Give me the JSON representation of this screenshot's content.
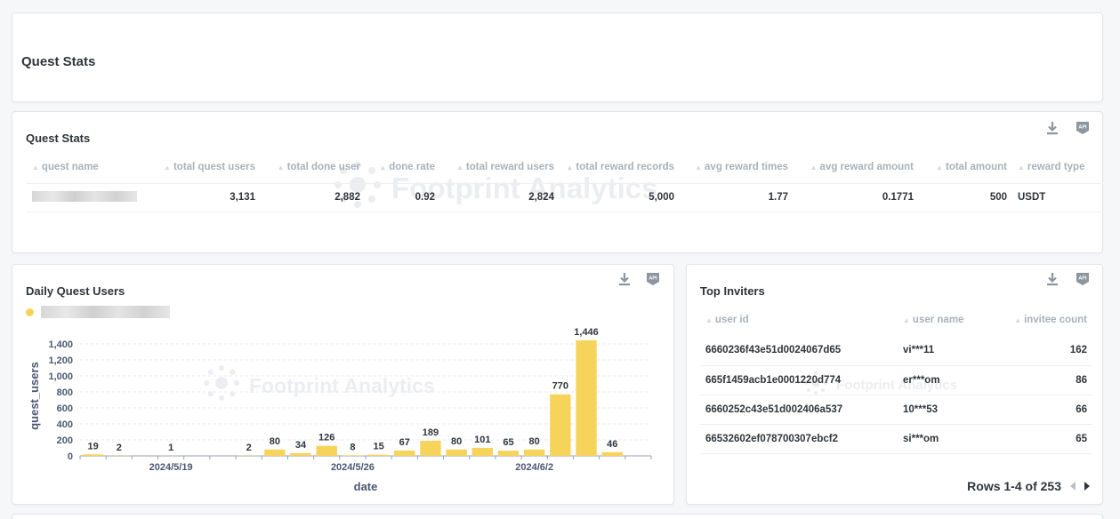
{
  "header_card": {
    "title": "Quest Stats"
  },
  "quest_stats": {
    "title": "Quest Stats",
    "watermark": "Footprint Analytics",
    "columns": [
      "quest name",
      "total quest users",
      "total done user",
      "done rate",
      "total reward users",
      "total reward records",
      "avg reward times",
      "avg reward amount",
      "total amount",
      "reward type"
    ],
    "row": {
      "total_quest_users": "3,131",
      "total_done_user": "2,882",
      "done_rate": "0.92",
      "total_reward_users": "2,824",
      "total_reward_records": "5,000",
      "avg_reward_times": "1.77",
      "avg_reward_amount": "0.1771",
      "total_amount": "500",
      "reward_type": "USDT"
    }
  },
  "daily_quest_users": {
    "title": "Daily Quest Users",
    "watermark": "Footprint Analytics",
    "bar_color": "#f6d35b"
  },
  "top_inviters": {
    "title": "Top Inviters",
    "watermark": "Footprint Analytics",
    "columns": [
      "user id",
      "user name",
      "invitee count"
    ],
    "rows": [
      {
        "user_id": "6660236f43e51d0024067d65",
        "user_name": "vi***11",
        "invitee_count": "162"
      },
      {
        "user_id": "665f1459acb1e0001220d774",
        "user_name": "er***om",
        "invitee_count": "86"
      },
      {
        "user_id": "6660252c43e51d002406a537",
        "user_name": "10***53",
        "invitee_count": "66"
      },
      {
        "user_id": "66532602ef078700307ebcf2",
        "user_name": "si***om",
        "invitee_count": "65"
      }
    ],
    "pagination": "Rows 1-4 of 253"
  },
  "icons": {
    "download": "download-icon",
    "api": "api-icon"
  },
  "chart_data": {
    "type": "bar",
    "xlabel": "date",
    "ylabel": "quest_users",
    "ylim": [
      0,
      1500
    ],
    "yticks": [
      0,
      200,
      400,
      600,
      800,
      1000,
      1200,
      1400
    ],
    "ytick_labels": [
      "0",
      "200",
      "400",
      "600",
      "800",
      "1,000",
      "1,200",
      "1,400"
    ],
    "x_tick_labels": [
      {
        "date": "2024-05-19",
        "label": "2024/5/19"
      },
      {
        "date": "2024-05-26",
        "label": "2024/5/26"
      },
      {
        "date": "2024-06-02",
        "label": "2024/6/2"
      }
    ],
    "x_range": [
      "2024-05-16",
      "2024-06-06"
    ],
    "points": [
      {
        "date": "2024-05-16",
        "value": 19,
        "label": "19"
      },
      {
        "date": "2024-05-17",
        "value": 2,
        "label": "2"
      },
      {
        "date": "2024-05-19",
        "value": 1,
        "label": "1"
      },
      {
        "date": "2024-05-22",
        "value": 2,
        "label": "2"
      },
      {
        "date": "2024-05-23",
        "value": 80,
        "label": "80"
      },
      {
        "date": "2024-05-24",
        "value": 34,
        "label": "34"
      },
      {
        "date": "2024-05-25",
        "value": 126,
        "label": "126"
      },
      {
        "date": "2024-05-26",
        "value": 8,
        "label": "8"
      },
      {
        "date": "2024-05-27",
        "value": 15,
        "label": "15"
      },
      {
        "date": "2024-05-28",
        "value": 67,
        "label": "67"
      },
      {
        "date": "2024-05-29",
        "value": 189,
        "label": "189"
      },
      {
        "date": "2024-05-30",
        "value": 80,
        "label": "80"
      },
      {
        "date": "2024-05-31",
        "value": 101,
        "label": "101"
      },
      {
        "date": "2024-06-01",
        "value": 65,
        "label": "65"
      },
      {
        "date": "2024-06-02",
        "value": 80,
        "label": "80"
      },
      {
        "date": "2024-06-03",
        "value": 770,
        "label": "770"
      },
      {
        "date": "2024-06-04",
        "value": 1446,
        "label": "1,446"
      },
      {
        "date": "2024-06-05",
        "value": 46,
        "label": "46"
      }
    ],
    "grid": true,
    "legend": "top-left"
  }
}
